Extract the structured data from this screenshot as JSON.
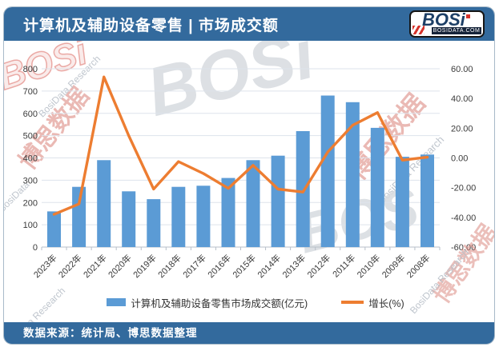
{
  "header": {
    "title": "计算机及辅助设备零售 | 市场成交额"
  },
  "logo": {
    "brand": "BOSi",
    "domain": "BOSIDATA.COM",
    "navy": "#1d3f66",
    "red": "#d6342c"
  },
  "footer": {
    "source": "数据来源：统计局、博思数据整理"
  },
  "watermarks": {
    "brand": "BOSi",
    "brand_cn": "博思数据",
    "research": "BosiData Research",
    "research_short": "BosiData"
  },
  "colors": {
    "header_bg": "#336a9d",
    "bar_blue": "#5b9bd5",
    "line_orange": "#ed7d31",
    "grid": "#dde3eb",
    "axis_line": "#b7bfc9",
    "axis_text": "#3b3b3b"
  },
  "chart_data": {
    "type": "bar",
    "combo": true,
    "title": "计算机及辅助设备零售 | 市场成交额",
    "categories": [
      "2023年",
      "2022年",
      "2021年",
      "2020年",
      "2019年",
      "2018年",
      "2017年",
      "2016年",
      "2015年",
      "2014年",
      "2013年",
      "2012年",
      "2011年",
      "2010年",
      "2009年",
      "2008年"
    ],
    "series": [
      {
        "name": "计算机及辅助设备零售市场成交额(亿元)",
        "type": "bar",
        "axis": "left",
        "color": "#5b9bd5",
        "values": [
          160,
          270,
          390,
          250,
          215,
          270,
          275,
          310,
          390,
          410,
          520,
          680,
          650,
          535,
          405,
          415
        ]
      },
      {
        "name": "增长(%)",
        "type": "line",
        "axis": "right",
        "color": "#ed7d31",
        "values": [
          -38,
          -31,
          54.5,
          15,
          -21,
          -2.5,
          -10.5,
          -20.5,
          -5,
          -21,
          -23,
          4,
          22,
          30.5,
          -1.5,
          0.5
        ]
      }
    ],
    "left_axis": {
      "min": 0,
      "max": 800,
      "step": 100
    },
    "right_axis": {
      "min": -60,
      "max": 60,
      "step": 20,
      "decimals": 2
    },
    "grid": true,
    "legend_position": "bottom",
    "xlabel": "",
    "ylabel_left": "亿元",
    "ylabel_right": "%"
  }
}
